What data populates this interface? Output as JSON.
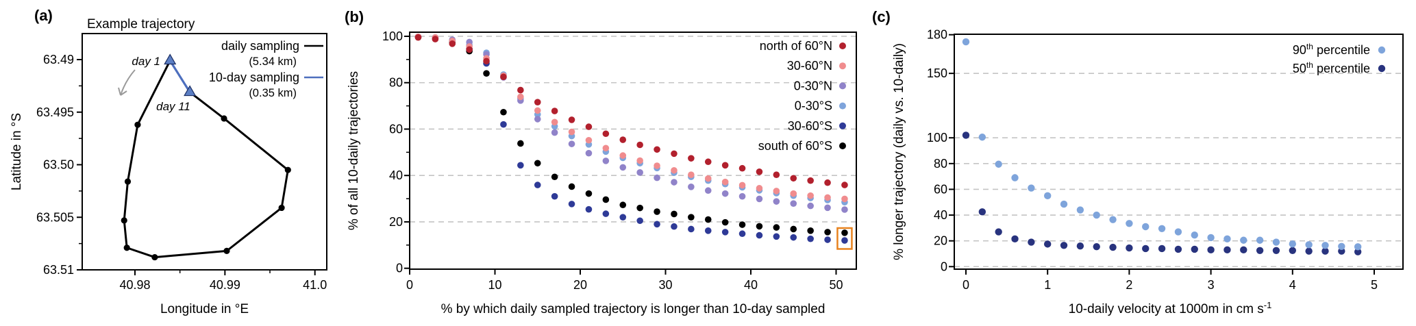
{
  "figure": {
    "background": "#ffffff",
    "panel_letters": {
      "a": "(a)",
      "b": "(b)",
      "c": "(c)"
    }
  },
  "colors": {
    "black": "#000000",
    "dark_red": "#b2202d",
    "pink": "#f08c8e",
    "purple": "#9083c9",
    "light_blue": "#7ea4db",
    "navy": "#2e3a97",
    "navy_dark": "#28337e",
    "blue_line": "#4d6fbe",
    "triangle_fill": "#5c7fc4",
    "triangle_edge": "#1c2f63",
    "grid": "#c4c4c4",
    "arrow_gray": "#9a9a9a",
    "highlight_orange": "#e8821e"
  },
  "chart_data": [
    {
      "id": "a",
      "type": "line",
      "title": "Example trajectory",
      "xlabel": "Longitude in °E",
      "ylabel": "Latitude in °S",
      "xtick_labels": [
        "40.98",
        "40.99",
        "41.0"
      ],
      "xticks": [
        40.98,
        40.99,
        41.0
      ],
      "xminor": [
        40.985,
        40.995
      ],
      "ytick_labels": [
        "63.49",
        "63.495",
        "63.50",
        "63.505",
        "63.51"
      ],
      "yticks": [
        63.49,
        63.495,
        63.5,
        63.505,
        63.51
      ],
      "yminor": [
        63.4925,
        63.4975,
        63.5025,
        63.5075
      ],
      "y_axis_inverted": true,
      "grid": "off",
      "series": [
        {
          "name": "daily sampling",
          "color": "#000000",
          "marker": "circle",
          "points": [
            [
              40.9839,
              63.4901
            ],
            [
              40.9803,
              63.4962
            ],
            [
              40.9792,
              63.5016
            ],
            [
              40.9788,
              63.5053
            ],
            [
              40.9791,
              63.5079
            ],
            [
              40.9822,
              63.5088
            ],
            [
              40.9902,
              63.5082
            ],
            [
              40.9963,
              63.5041
            ],
            [
              40.997,
              63.5005
            ],
            [
              40.9899,
              63.4956
            ],
            [
              40.9861,
              63.4931
            ]
          ]
        },
        {
          "name": "10-day sampling",
          "color": "#4d6fbe",
          "marker": "triangle",
          "points": [
            [
              40.9839,
              63.4901
            ],
            [
              40.9861,
              63.4931
            ]
          ]
        }
      ],
      "legend": [
        {
          "label": "daily sampling",
          "sub": "(5.34 km)",
          "color": "#000000"
        },
        {
          "label": "10-day sampling",
          "sub": "(0.35 km)",
          "color": "#4d6fbe"
        }
      ],
      "annotations": {
        "day1": "day 1",
        "day11": "day 11",
        "direction_arrow": "counterclockwise"
      }
    },
    {
      "id": "b",
      "type": "scatter",
      "xlabel": "% by which daily sampled trajectory is longer than 10-day sampled",
      "ylabel": "% of all 10-daily trajectories",
      "xticks": [
        0,
        10,
        20,
        30,
        40,
        50
      ],
      "yticks": [
        0,
        20,
        40,
        60,
        80,
        100
      ],
      "yminor": [
        10,
        30,
        50,
        70,
        90
      ],
      "gridlines_y": [
        20,
        40,
        60,
        80,
        100
      ],
      "xlim": [
        0,
        52.4
      ],
      "ylim": [
        0,
        102
      ],
      "x": [
        1,
        3,
        5,
        7,
        9,
        11,
        13,
        15,
        17,
        19,
        21,
        23,
        25,
        27,
        29,
        31,
        33,
        35,
        37,
        39,
        41,
        43,
        45,
        47,
        49,
        51
      ],
      "series": [
        {
          "name": "north of 60°N",
          "color": "#b2202d",
          "values": [
            99.5,
            98.8,
            96.8,
            94.3,
            89.3,
            82.5,
            76.8,
            71.6,
            67.8,
            64.0,
            61.0,
            58.0,
            55.4,
            53.2,
            51.2,
            49.4,
            47.4,
            45.9,
            44.4,
            43.1,
            41.6,
            40.3,
            38.8,
            37.8,
            36.9,
            35.9
          ]
        },
        {
          "name": "30-60°N",
          "color": "#f08c8e",
          "values": [
            99.8,
            99.5,
            98.0,
            95.6,
            90.5,
            83.0,
            73.9,
            68.0,
            63.0,
            58.8,
            55.2,
            51.8,
            48.6,
            46.4,
            44.2,
            42.2,
            40.3,
            38.7,
            37.2,
            35.8,
            34.5,
            33.3,
            32.2,
            31.3,
            30.5,
            29.9
          ]
        },
        {
          "name": "0-30°N",
          "color": "#9083c9",
          "values": [
            99.8,
            99.3,
            98.5,
            97.5,
            92.2,
            82.3,
            72.3,
            64.3,
            58.5,
            53.6,
            49.6,
            46.3,
            43.5,
            41.3,
            39.0,
            37.1,
            35.1,
            33.5,
            32.2,
            31.0,
            29.9,
            28.8,
            27.9,
            26.9,
            26.1,
            25.3
          ]
        },
        {
          "name": "0-30°S",
          "color": "#7ea4db",
          "values": [
            99.8,
            99.5,
            98.2,
            96.2,
            92.9,
            83.5,
            73.2,
            66.3,
            61.2,
            57.0,
            53.4,
            50.3,
            47.6,
            45.3,
            43.2,
            41.2,
            39.4,
            37.8,
            36.3,
            34.9,
            33.6,
            32.4,
            31.3,
            30.3,
            29.4,
            28.5
          ]
        },
        {
          "name": "30-60°S",
          "color": "#2e3a97",
          "values": [
            99.7,
            99.3,
            98.0,
            94.5,
            88.3,
            62.0,
            44.4,
            35.9,
            31.0,
            27.7,
            25.4,
            23.5,
            22.0,
            20.5,
            19.0,
            18.0,
            16.9,
            16.2,
            15.6,
            14.9,
            14.2,
            13.7,
            13.3,
            12.7,
            12.3,
            12.0
          ]
        },
        {
          "name": "south of 60°S",
          "color": "#000000",
          "values": [
            99.7,
            99.2,
            97.6,
            93.6,
            84.0,
            67.3,
            53.8,
            45.3,
            39.4,
            35.2,
            32.2,
            29.6,
            27.3,
            26.0,
            24.4,
            23.4,
            22.0,
            21.0,
            19.8,
            18.8,
            18.1,
            17.6,
            16.9,
            16.2,
            15.6,
            15.3
          ]
        }
      ],
      "draw_order": [
        "0-30°S",
        "south of 60°S",
        "30-60°S",
        "0-30°N",
        "30-60°N",
        "north of 60°N"
      ],
      "legend_position": "top-right",
      "highlight_box": {
        "at_x": 51,
        "series": [
          "south of 60°S",
          "30-60°S"
        ],
        "color": "#e8821e"
      }
    },
    {
      "id": "c",
      "type": "scatter",
      "xlabel": "10-daily velocity at 1000m in cm s",
      "xlabel_sup": "-1",
      "ylabel": "% longer trajectory (daily vs. 10-daily)",
      "xticks": [
        0,
        1,
        2,
        3,
        4,
        5
      ],
      "yticks": [
        0,
        20,
        40,
        60,
        80,
        100,
        150,
        180
      ],
      "gridlines_y": [
        0,
        20,
        40,
        60,
        80,
        100,
        150
      ],
      "xlim": [
        -0.15,
        5.35
      ],
      "ylim": [
        -2,
        180
      ],
      "x": [
        0,
        0.2,
        0.4,
        0.6,
        0.8,
        1.0,
        1.2,
        1.4,
        1.6,
        1.8,
        2.0,
        2.2,
        2.4,
        2.6,
        2.8,
        3.0,
        3.2,
        3.4,
        3.6,
        3.8,
        4.0,
        4.2,
        4.4,
        4.6,
        4.8
      ],
      "series": [
        {
          "name": "90th percentile",
          "num": "90",
          "sup": "th",
          "rest": " percentile",
          "color": "#7ea4db",
          "values": [
            174.5,
            100.5,
            79.5,
            69,
            61,
            55,
            48.5,
            44,
            40,
            36.5,
            33.5,
            31,
            29.5,
            27,
            24.5,
            22.5,
            21.5,
            20.5,
            20.5,
            19,
            17.6,
            17,
            16.5,
            15.7,
            15.4
          ]
        },
        {
          "name": "50th percentile",
          "num": "50",
          "sup": "th",
          "rest": " percentile",
          "color": "#28337e",
          "values": [
            102,
            42.5,
            27,
            21.5,
            19,
            17.5,
            16.5,
            16,
            15.5,
            15,
            14.5,
            14,
            14,
            13.5,
            13.5,
            13,
            13,
            13,
            12.5,
            12.5,
            12.5,
            12,
            12,
            12,
            11.5
          ]
        }
      ],
      "draw_order": [
        "50th percentile",
        "90th percentile"
      ],
      "legend_position": "top-right"
    }
  ]
}
